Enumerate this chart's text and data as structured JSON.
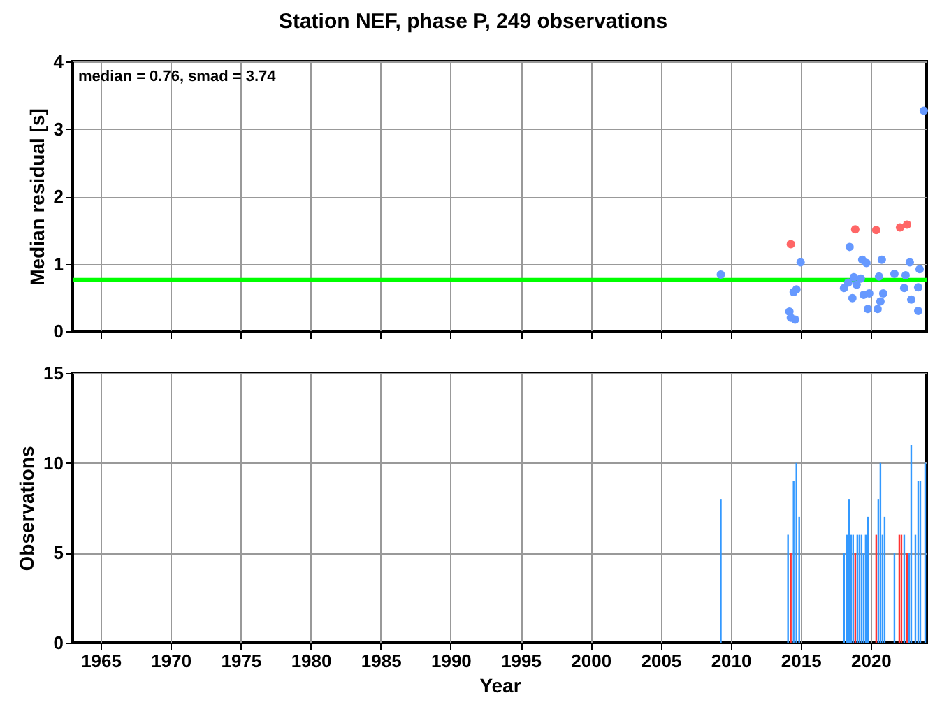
{
  "chart_data": [
    {
      "type": "scatter",
      "title": "Station NEF, phase P, 249 observations",
      "ylabel": "Median residual [s]",
      "xlim": [
        1963,
        2024
      ],
      "xticks": [
        1965,
        1970,
        1975,
        1980,
        1985,
        1990,
        1995,
        2000,
        2005,
        2010,
        2015,
        2020
      ],
      "ylim": [
        0,
        4
      ],
      "yticks": [
        0,
        1,
        2,
        3,
        4
      ],
      "grid": true,
      "tick_labels": "y",
      "marker": "circle",
      "annotations": [
        "median = 0.76, smad = 3.74"
      ],
      "ref_lines": [
        {
          "axis": "y",
          "value": 0.76,
          "label": null,
          "color": "#00ff00"
        }
      ],
      "series": [
        {
          "color": "#6699ff",
          "x": [
            2009.3,
            2015.0,
            2014.7,
            2014.5,
            2014.2,
            2014.3,
            2014.6,
            2018.5,
            2019.4,
            2019.7,
            2020.8,
            2022.8,
            2023.5,
            2021.7,
            2022.5,
            2020.6,
            2018.8,
            2019.3,
            2018.4,
            2019.0,
            2018.1,
            2022.4,
            2023.4,
            2019.9,
            2019.5,
            2020.9,
            2018.7,
            2022.9,
            2020.7,
            2019.8,
            2020.5,
            2023.4,
            2023.8
          ],
          "values": [
            0.84,
            1.02,
            0.62,
            0.58,
            0.29,
            0.2,
            0.17,
            1.25,
            1.06,
            1.01,
            1.06,
            1.02,
            0.92,
            0.85,
            0.83,
            0.81,
            0.8,
            0.78,
            0.72,
            0.69,
            0.64,
            0.64,
            0.65,
            0.56,
            0.54,
            0.56,
            0.49,
            0.47,
            0.44,
            0.33,
            0.33,
            0.3,
            3.27
          ]
        },
        {
          "color": "#ff6666",
          "x": [
            2014.3,
            2018.9,
            2020.4,
            2022.1,
            2022.6
          ],
          "values": [
            1.29,
            1.51,
            1.5,
            1.54,
            1.58
          ]
        }
      ]
    },
    {
      "type": "bar",
      "xlabel": "Year",
      "ylabel": "Observations",
      "xlim": [
        1963,
        2024
      ],
      "xticks": [
        1965,
        1970,
        1975,
        1980,
        1985,
        1990,
        1995,
        2000,
        2005,
        2010,
        2015,
        2020
      ],
      "ylim": [
        0,
        15
      ],
      "yticks": [
        0,
        5,
        10,
        15
      ],
      "grid": true,
      "series": [
        {
          "color": "#3399ff",
          "x": [
            2009.3,
            2014.1,
            2014.5,
            2014.7,
            2014.9,
            2018.1,
            2018.3,
            2018.45,
            2018.6,
            2018.75,
            2019.05,
            2019.2,
            2019.35,
            2019.5,
            2019.65,
            2019.8,
            2020.55,
            2020.7,
            2020.85,
            2021.0,
            2021.7,
            2022.4,
            2022.75,
            2022.9,
            2023.2,
            2023.4,
            2023.55,
            2023.9
          ],
          "values": [
            8,
            6,
            9,
            10,
            7,
            5,
            6,
            8,
            6,
            6,
            6,
            6,
            6,
            5,
            6,
            7,
            8,
            10,
            6,
            7,
            5,
            6,
            5,
            11,
            6,
            9,
            9,
            10
          ]
        },
        {
          "color": "#ff3333",
          "x": [
            2014.3,
            2018.9,
            2020.4,
            2022.05,
            2022.2,
            2022.6
          ],
          "values": [
            5,
            5,
            6,
            6,
            6,
            5
          ]
        }
      ]
    }
  ]
}
